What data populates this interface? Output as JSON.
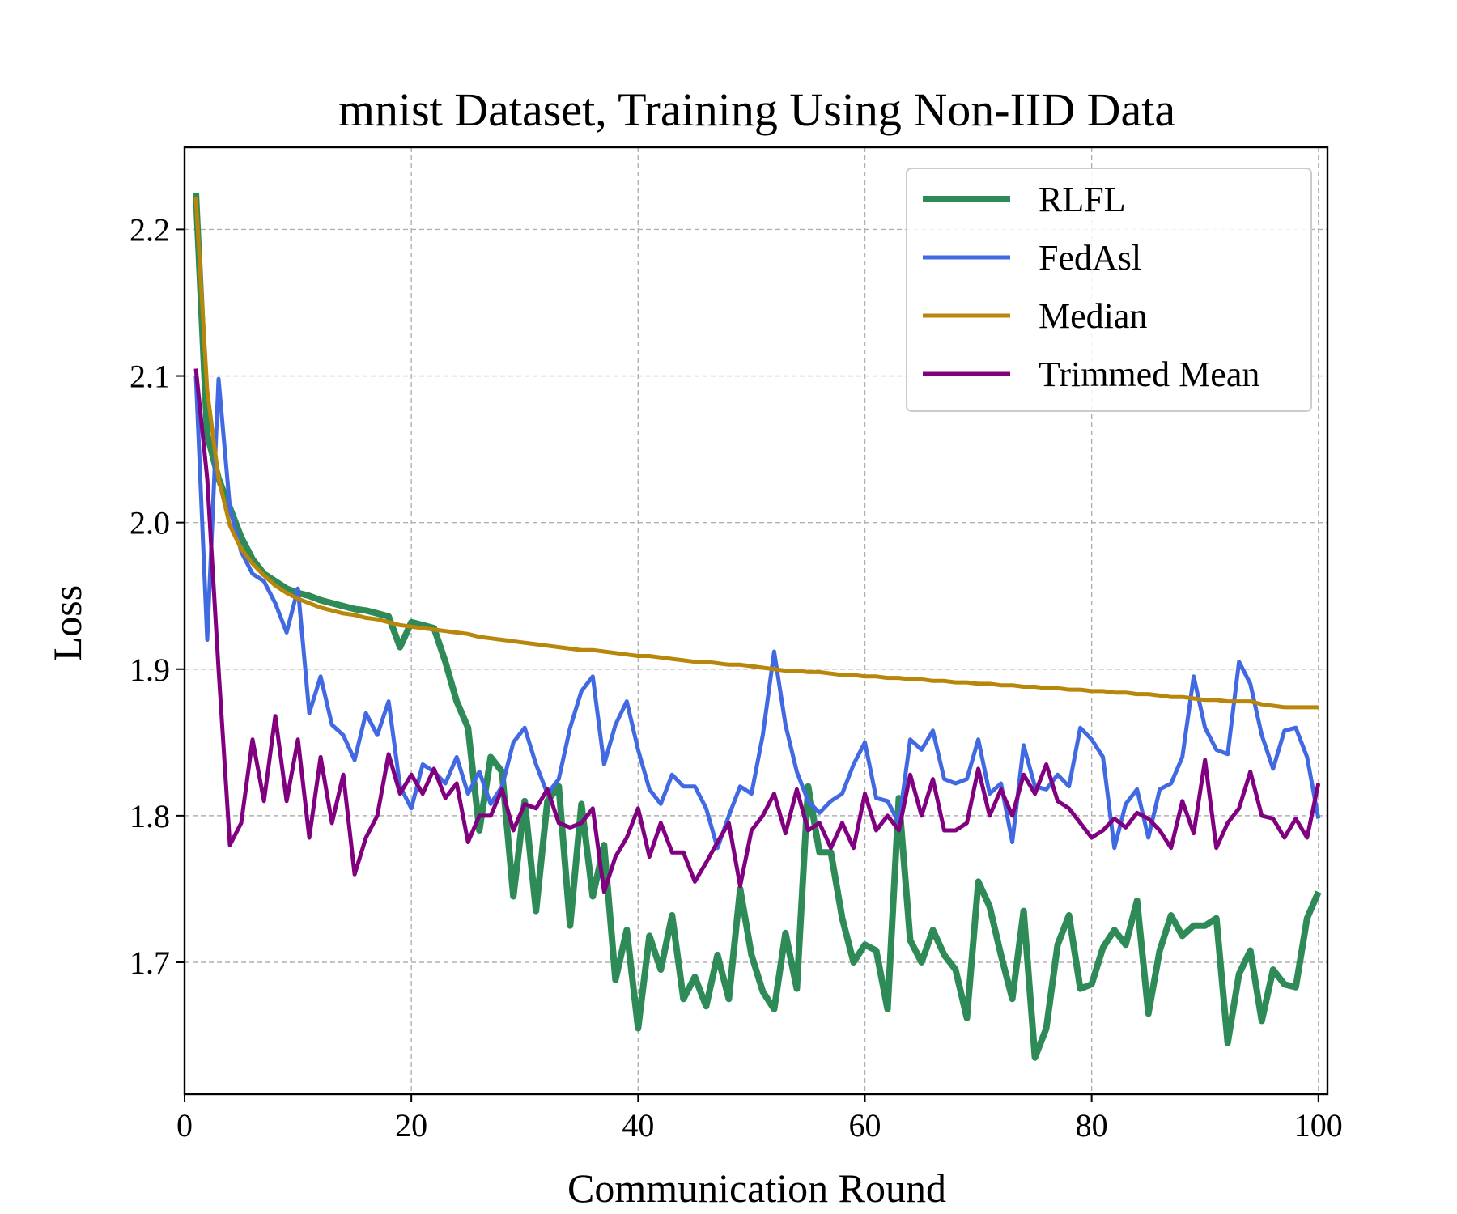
{
  "chart_data": {
    "type": "line",
    "title": "mnist Dataset, Training Using Non-IID Data",
    "xlabel": "Communication Round",
    "ylabel": "Loss",
    "xlim": [
      0,
      100.8
    ],
    "ylim": [
      1.61,
      2.256
    ],
    "xticks": [
      0,
      20,
      40,
      60,
      80,
      100
    ],
    "yticks": [
      1.7,
      1.8,
      1.9,
      2.0,
      2.1,
      2.2
    ],
    "xtick_labels": [
      "0",
      "20",
      "40",
      "60",
      "80",
      "100"
    ],
    "ytick_labels": [
      "1.7",
      "1.8",
      "1.9",
      "2.0",
      "2.1",
      "2.2"
    ],
    "grid": true,
    "legend": "top-right",
    "series": [
      {
        "name": "RLFL",
        "color": "#2e8b57",
        "values": [
          2.225,
          2.06,
          2.03,
          2.01,
          1.99,
          1.975,
          1.965,
          1.96,
          1.955,
          1.952,
          1.95,
          1.947,
          1.945,
          1.943,
          1.941,
          1.94,
          1.938,
          1.936,
          1.915,
          1.932,
          1.93,
          1.928,
          1.905,
          1.878,
          1.86,
          1.79,
          1.84,
          1.83,
          1.745,
          1.81,
          1.735,
          1.81,
          1.82,
          1.725,
          1.808,
          1.745,
          1.78,
          1.688,
          1.722,
          1.655,
          1.718,
          1.695,
          1.732,
          1.675,
          1.69,
          1.67,
          1.705,
          1.675,
          1.75,
          1.705,
          1.68,
          1.668,
          1.72,
          1.682,
          1.82,
          1.775,
          1.775,
          1.73,
          1.7,
          1.712,
          1.708,
          1.668,
          1.812,
          1.715,
          1.7,
          1.722,
          1.705,
          1.695,
          1.662,
          1.755,
          1.738,
          1.705,
          1.675,
          1.735,
          1.635,
          1.655,
          1.712,
          1.732,
          1.682,
          1.685,
          1.71,
          1.722,
          1.712,
          1.742,
          1.665,
          1.708,
          1.732,
          1.718,
          1.725,
          1.725,
          1.73,
          1.645,
          1.692,
          1.708,
          1.66,
          1.695,
          1.685,
          1.683,
          1.73,
          1.748
        ]
      },
      {
        "name": "FedAsl",
        "color": "#4169e1",
        "values": [
          2.1,
          1.92,
          2.098,
          2.01,
          1.98,
          1.965,
          1.96,
          1.945,
          1.925,
          1.955,
          1.87,
          1.895,
          1.862,
          1.855,
          1.838,
          1.87,
          1.855,
          1.878,
          1.82,
          1.805,
          1.835,
          1.83,
          1.822,
          1.84,
          1.815,
          1.83,
          1.808,
          1.82,
          1.85,
          1.86,
          1.835,
          1.815,
          1.825,
          1.86,
          1.885,
          1.895,
          1.835,
          1.862,
          1.878,
          1.845,
          1.818,
          1.808,
          1.828,
          1.82,
          1.82,
          1.805,
          1.778,
          1.8,
          1.82,
          1.815,
          1.855,
          1.912,
          1.862,
          1.83,
          1.81,
          1.802,
          1.81,
          1.815,
          1.835,
          1.85,
          1.812,
          1.81,
          1.795,
          1.852,
          1.845,
          1.858,
          1.825,
          1.822,
          1.825,
          1.852,
          1.815,
          1.822,
          1.782,
          1.848,
          1.82,
          1.818,
          1.828,
          1.82,
          1.86,
          1.852,
          1.84,
          1.778,
          1.808,
          1.818,
          1.785,
          1.818,
          1.822,
          1.84,
          1.895,
          1.86,
          1.845,
          1.842,
          1.905,
          1.89,
          1.855,
          1.832,
          1.858,
          1.86,
          1.84,
          1.798
        ]
      },
      {
        "name": "Median",
        "color": "#b8860b",
        "values": [
          2.222,
          2.09,
          2.03,
          1.998,
          1.982,
          1.972,
          1.964,
          1.957,
          1.952,
          1.948,
          1.945,
          1.942,
          1.94,
          1.938,
          1.937,
          1.935,
          1.934,
          1.932,
          1.93,
          1.929,
          1.928,
          1.927,
          1.926,
          1.925,
          1.924,
          1.922,
          1.921,
          1.92,
          1.919,
          1.918,
          1.917,
          1.916,
          1.915,
          1.914,
          1.913,
          1.913,
          1.912,
          1.911,
          1.91,
          1.909,
          1.909,
          1.908,
          1.907,
          1.906,
          1.905,
          1.905,
          1.904,
          1.903,
          1.903,
          1.902,
          1.901,
          1.9,
          1.899,
          1.899,
          1.898,
          1.898,
          1.897,
          1.896,
          1.896,
          1.895,
          1.895,
          1.894,
          1.894,
          1.893,
          1.893,
          1.892,
          1.892,
          1.891,
          1.891,
          1.89,
          1.89,
          1.889,
          1.889,
          1.888,
          1.888,
          1.887,
          1.887,
          1.886,
          1.886,
          1.885,
          1.885,
          1.884,
          1.884,
          1.883,
          1.883,
          1.882,
          1.881,
          1.881,
          1.88,
          1.879,
          1.879,
          1.878,
          1.878,
          1.878,
          1.876,
          1.875,
          1.874,
          1.874,
          1.874,
          1.874
        ]
      },
      {
        "name": "Trimmed Mean",
        "color": "#800080",
        "values": [
          2.105,
          2.03,
          1.9,
          1.78,
          1.795,
          1.852,
          1.81,
          1.868,
          1.81,
          1.852,
          1.785,
          1.84,
          1.795,
          1.828,
          1.76,
          1.785,
          1.8,
          1.842,
          1.815,
          1.828,
          1.815,
          1.832,
          1.812,
          1.822,
          1.782,
          1.8,
          1.8,
          1.818,
          1.79,
          1.808,
          1.805,
          1.818,
          1.795,
          1.792,
          1.795,
          1.805,
          1.748,
          1.772,
          1.785,
          1.805,
          1.772,
          1.795,
          1.775,
          1.775,
          1.755,
          1.768,
          1.782,
          1.795,
          1.752,
          1.79,
          1.8,
          1.815,
          1.788,
          1.818,
          1.79,
          1.795,
          1.778,
          1.795,
          1.778,
          1.815,
          1.79,
          1.8,
          1.79,
          1.828,
          1.8,
          1.825,
          1.79,
          1.79,
          1.795,
          1.832,
          1.8,
          1.818,
          1.8,
          1.828,
          1.815,
          1.835,
          1.81,
          1.805,
          1.795,
          1.785,
          1.79,
          1.798,
          1.792,
          1.802,
          1.798,
          1.79,
          1.778,
          1.81,
          1.788,
          1.838,
          1.778,
          1.795,
          1.805,
          1.83,
          1.8,
          1.798,
          1.785,
          1.798,
          1.785,
          1.822
        ]
      }
    ]
  }
}
